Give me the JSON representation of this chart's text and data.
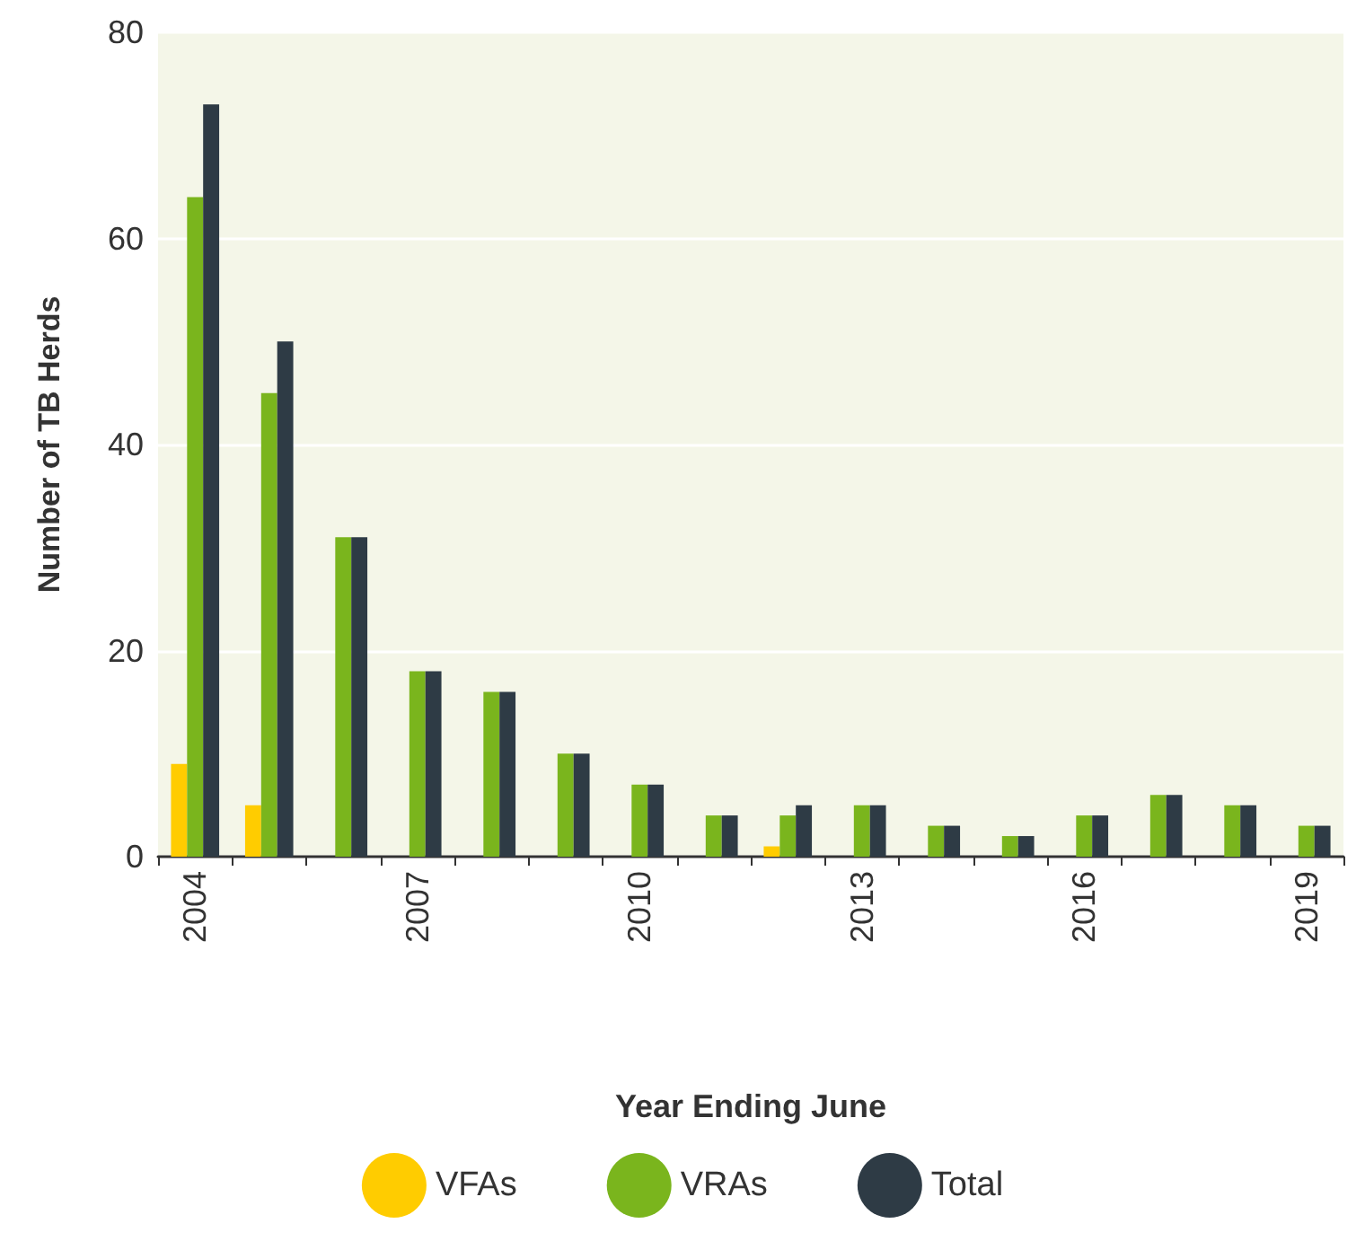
{
  "chart_data": {
    "type": "bar",
    "xlabel": "Year Ending June",
    "ylabel": "Number of TB Herds",
    "categories": [
      "2004",
      null,
      null,
      "2007",
      null,
      null,
      "2010",
      null,
      null,
      "2013",
      null,
      null,
      "2016",
      null,
      null,
      "2019"
    ],
    "series": [
      {
        "name": "VFAs",
        "color": "#ffcc00",
        "values": [
          9,
          5,
          0,
          0,
          0,
          0,
          0,
          0,
          1,
          0,
          0,
          0,
          0,
          0,
          0,
          0
        ]
      },
      {
        "name": "VRAs",
        "color": "#7ab51d",
        "values": [
          64,
          45,
          31,
          18,
          16,
          10,
          7,
          4,
          4,
          5,
          3,
          2,
          4,
          6,
          5,
          3
        ]
      },
      {
        "name": "Total",
        "color": "#2e3b45",
        "values": [
          73,
          50,
          31,
          18,
          16,
          10,
          7,
          4,
          5,
          5,
          3,
          2,
          4,
          6,
          5,
          3
        ]
      }
    ],
    "ylim": [
      0,
      80
    ],
    "yticks": [
      0,
      20,
      40,
      60,
      80
    ],
    "grid": "y",
    "legend": "bottom"
  }
}
